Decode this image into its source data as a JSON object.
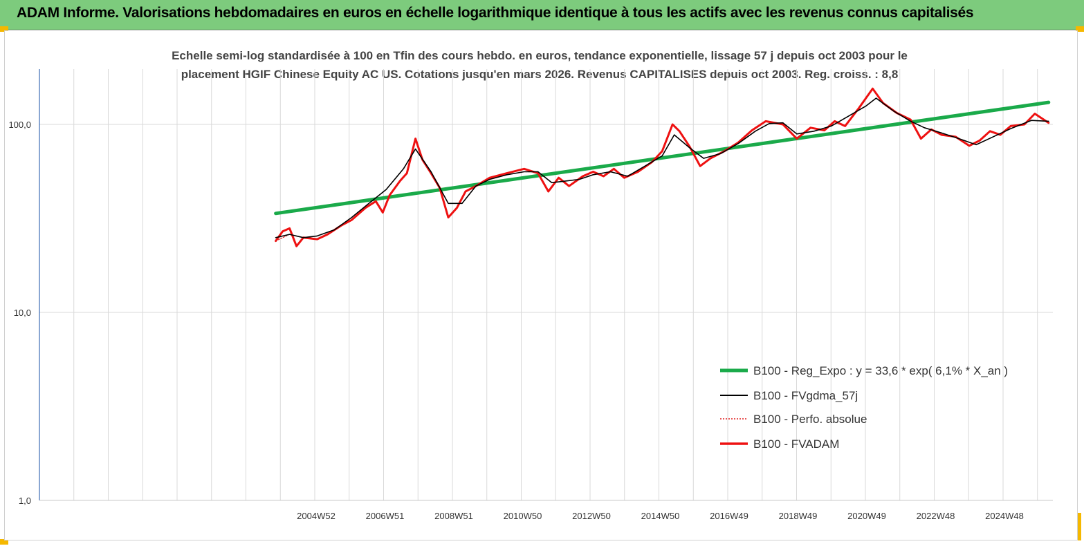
{
  "header": {
    "banner_title": "ADAM Informe. Valorisations hebdomadaires en euros en échelle logarithmique identique à tous les actifs avec les revenus connus capitalisés"
  },
  "chart_data": {
    "type": "line",
    "title_line1": "Echelle semi-log standardisée à 100 en Tfin des cours hebdo. en euros, tendance exponentielle, lissage 57 j depuis oct 2003 pour le",
    "title_line2": "placement HGIF Chinese Equity AC US. Cotations jusqu'en mars 2026. Revenus CAPITALISES depuis oct 2003. Reg. croiss. : 8,8",
    "y_scale": "log",
    "ylim": [
      1,
      200
    ],
    "y_ticks": [
      "100,0",
      "10,0",
      "1,0"
    ],
    "x_ticks": [
      "2004W52",
      "2006W51",
      "2008W51",
      "2010W50",
      "2012W50",
      "2014W50",
      "2016W49",
      "2018W49",
      "2020W49",
      "2022W48",
      "2024W48"
    ],
    "grid": "vertical",
    "legend_position": "bottom-right",
    "series": [
      {
        "name": "B100 - Reg_Expo : y = 33,6 * exp( 6,1% * X_an )",
        "color": "#1aaa4a",
        "points": [
          [
            2003.8,
            33.6
          ],
          [
            2026.2,
            131
          ]
        ]
      },
      {
        "name": "B100 - FVgdma_57j",
        "color": "#000000",
        "points": [
          [
            2003.8,
            25
          ],
          [
            2004.2,
            26
          ],
          [
            2004.6,
            25
          ],
          [
            2005.0,
            25.5
          ],
          [
            2005.5,
            27.5
          ],
          [
            2006.0,
            32
          ],
          [
            2006.5,
            38
          ],
          [
            2007.0,
            45
          ],
          [
            2007.5,
            58
          ],
          [
            2007.85,
            74
          ],
          [
            2008.3,
            56
          ],
          [
            2008.8,
            38
          ],
          [
            2009.2,
            38
          ],
          [
            2009.6,
            47
          ],
          [
            2010.0,
            51
          ],
          [
            2010.5,
            54
          ],
          [
            2011.0,
            56
          ],
          [
            2011.4,
            56
          ],
          [
            2011.8,
            49
          ],
          [
            2012.2,
            50
          ],
          [
            2012.6,
            51
          ],
          [
            2013.0,
            54
          ],
          [
            2013.5,
            56
          ],
          [
            2014.0,
            53
          ],
          [
            2014.5,
            60
          ],
          [
            2015.0,
            68
          ],
          [
            2015.35,
            88
          ],
          [
            2015.8,
            75
          ],
          [
            2016.2,
            66
          ],
          [
            2016.7,
            70
          ],
          [
            2017.2,
            79
          ],
          [
            2017.7,
            92
          ],
          [
            2018.1,
            101
          ],
          [
            2018.5,
            102
          ],
          [
            2018.9,
            89
          ],
          [
            2019.4,
            92
          ],
          [
            2019.9,
            98
          ],
          [
            2020.3,
            108
          ],
          [
            2020.9,
            125
          ],
          [
            2021.2,
            138
          ],
          [
            2021.7,
            118
          ],
          [
            2022.2,
            104
          ],
          [
            2022.6,
            96
          ],
          [
            2023.1,
            90
          ],
          [
            2023.6,
            84
          ],
          [
            2024.1,
            78
          ],
          [
            2024.6,
            86
          ],
          [
            2025.1,
            95
          ],
          [
            2025.7,
            105
          ],
          [
            2026.2,
            104
          ]
        ]
      },
      {
        "name": "B100 - Perfo. absolue",
        "color": "#e02020",
        "points": [
          [
            2003.8,
            24
          ],
          [
            2004.2,
            26
          ],
          [
            2004.6,
            25
          ],
          [
            2005.0,
            25.5
          ],
          [
            2005.5,
            27.5
          ],
          [
            2006.0,
            32
          ],
          [
            2006.5,
            38
          ],
          [
            2007.0,
            45
          ],
          [
            2007.5,
            58
          ],
          [
            2007.85,
            74
          ],
          [
            2008.3,
            56
          ],
          [
            2008.8,
            38
          ],
          [
            2009.2,
            38
          ],
          [
            2009.6,
            47
          ],
          [
            2010.0,
            51
          ],
          [
            2010.5,
            54
          ],
          [
            2011.0,
            56
          ],
          [
            2011.4,
            56
          ],
          [
            2011.8,
            49
          ],
          [
            2012.2,
            50
          ],
          [
            2012.6,
            51
          ],
          [
            2013.0,
            54
          ],
          [
            2013.5,
            56
          ],
          [
            2014.0,
            53
          ],
          [
            2014.5,
            60
          ],
          [
            2015.0,
            68
          ],
          [
            2015.35,
            88
          ],
          [
            2015.8,
            75
          ],
          [
            2016.2,
            66
          ],
          [
            2016.7,
            70
          ],
          [
            2017.2,
            79
          ],
          [
            2017.7,
            92
          ],
          [
            2018.1,
            101
          ],
          [
            2018.5,
            102
          ],
          [
            2018.9,
            89
          ],
          [
            2019.4,
            92
          ],
          [
            2019.9,
            98
          ],
          [
            2020.3,
            108
          ],
          [
            2020.9,
            125
          ],
          [
            2021.2,
            138
          ],
          [
            2021.7,
            118
          ],
          [
            2022.2,
            104
          ],
          [
            2022.6,
            96
          ],
          [
            2023.1,
            90
          ],
          [
            2023.6,
            84
          ],
          [
            2024.1,
            78
          ],
          [
            2024.6,
            86
          ],
          [
            2025.1,
            95
          ],
          [
            2025.7,
            105
          ],
          [
            2026.2,
            104
          ]
        ]
      },
      {
        "name": "B100 - FVADAM",
        "color": "#ee1111",
        "points": [
          [
            2003.8,
            24
          ],
          [
            2004.0,
            27
          ],
          [
            2004.2,
            28
          ],
          [
            2004.4,
            22.5
          ],
          [
            2004.6,
            25
          ],
          [
            2005.0,
            24.5
          ],
          [
            2005.3,
            26
          ],
          [
            2005.7,
            29
          ],
          [
            2006.0,
            31
          ],
          [
            2006.4,
            36
          ],
          [
            2006.7,
            39
          ],
          [
            2006.9,
            34
          ],
          [
            2007.1,
            42
          ],
          [
            2007.4,
            50
          ],
          [
            2007.6,
            55
          ],
          [
            2007.85,
            84
          ],
          [
            2008.05,
            65
          ],
          [
            2008.3,
            55
          ],
          [
            2008.55,
            46
          ],
          [
            2008.8,
            32
          ],
          [
            2009.05,
            36
          ],
          [
            2009.3,
            44
          ],
          [
            2009.6,
            47
          ],
          [
            2010.0,
            52
          ],
          [
            2010.5,
            55
          ],
          [
            2011.0,
            58
          ],
          [
            2011.4,
            55
          ],
          [
            2011.7,
            44
          ],
          [
            2012.0,
            52
          ],
          [
            2012.3,
            47
          ],
          [
            2012.7,
            53
          ],
          [
            2013.0,
            56
          ],
          [
            2013.3,
            53
          ],
          [
            2013.6,
            58
          ],
          [
            2013.9,
            52
          ],
          [
            2014.3,
            56
          ],
          [
            2014.7,
            63
          ],
          [
            2015.0,
            72
          ],
          [
            2015.3,
            100
          ],
          [
            2015.5,
            92
          ],
          [
            2015.8,
            76
          ],
          [
            2016.1,
            60
          ],
          [
            2016.4,
            66
          ],
          [
            2016.8,
            72
          ],
          [
            2017.2,
            80
          ],
          [
            2017.6,
            93
          ],
          [
            2018.0,
            104
          ],
          [
            2018.5,
            100
          ],
          [
            2018.9,
            84
          ],
          [
            2019.3,
            96
          ],
          [
            2019.7,
            93
          ],
          [
            2020.0,
            104
          ],
          [
            2020.3,
            98
          ],
          [
            2020.7,
            122
          ],
          [
            2021.1,
            155
          ],
          [
            2021.4,
            130
          ],
          [
            2021.8,
            115
          ],
          [
            2022.2,
            106
          ],
          [
            2022.5,
            84
          ],
          [
            2022.8,
            94
          ],
          [
            2023.1,
            88
          ],
          [
            2023.5,
            86
          ],
          [
            2023.9,
            77
          ],
          [
            2024.2,
            82
          ],
          [
            2024.5,
            92
          ],
          [
            2024.8,
            88
          ],
          [
            2025.1,
            98
          ],
          [
            2025.5,
            100
          ],
          [
            2025.8,
            114
          ],
          [
            2026.2,
            102
          ]
        ]
      }
    ]
  }
}
